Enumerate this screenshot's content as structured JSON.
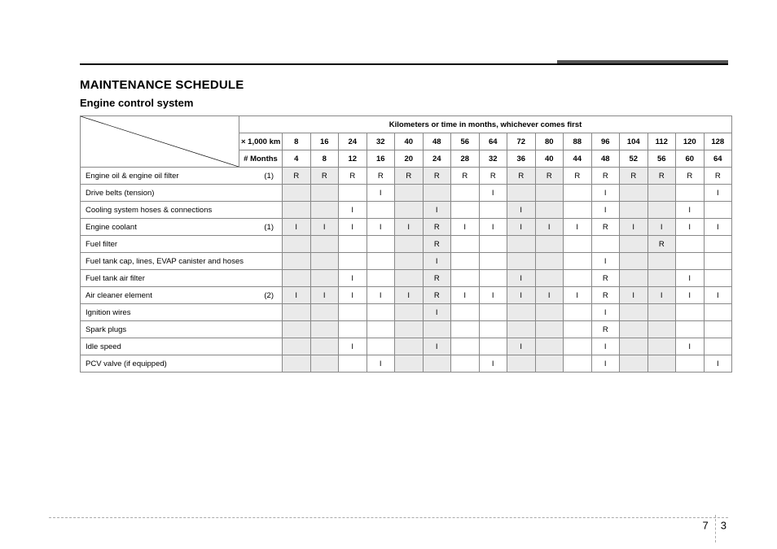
{
  "header": {
    "title": "MAINTENANCE SCHEDULE",
    "subtitle": "Engine control system",
    "band_title": "Kilometers or time in months, whichever comes first",
    "unit_km": "× 1,000 km",
    "unit_months": "# Months"
  },
  "columns_km": [
    "8",
    "16",
    "24",
    "32",
    "40",
    "48",
    "56",
    "64",
    "72",
    "80",
    "88",
    "96",
    "104",
    "112",
    "120",
    "128"
  ],
  "columns_months": [
    "4",
    "8",
    "12",
    "16",
    "20",
    "24",
    "28",
    "32",
    "36",
    "40",
    "44",
    "48",
    "52",
    "56",
    "60",
    "64"
  ],
  "shaded_cols": [
    0,
    1,
    4,
    5,
    8,
    9,
    12,
    13
  ],
  "rows": [
    {
      "label": "Engine oil & engine oil filter",
      "note": "(1)",
      "cells": [
        "R",
        "R",
        "R",
        "R",
        "R",
        "R",
        "R",
        "R",
        "R",
        "R",
        "R",
        "R",
        "R",
        "R",
        "R",
        "R"
      ]
    },
    {
      "label": "Drive belts (tension)",
      "note": "",
      "cells": [
        "",
        "",
        "",
        "I",
        "",
        "",
        "",
        "I",
        "",
        "",
        "",
        "I",
        "",
        "",
        "",
        "I"
      ]
    },
    {
      "label": "Cooling system hoses & connections",
      "note": "",
      "cells": [
        "",
        "",
        "I",
        "",
        "",
        "I",
        "",
        "",
        "I",
        "",
        "",
        "I",
        "",
        "",
        "I",
        ""
      ]
    },
    {
      "label": "Engine coolant",
      "note": "(1)",
      "cells": [
        "I",
        "I",
        "I",
        "I",
        "I",
        "R",
        "I",
        "I",
        "I",
        "I",
        "I",
        "R",
        "I",
        "I",
        "I",
        "I"
      ]
    },
    {
      "label": "Fuel filter",
      "note": "",
      "cells": [
        "",
        "",
        "",
        "",
        "",
        "R",
        "",
        "",
        "",
        "",
        "",
        "",
        "",
        "R",
        "",
        ""
      ]
    },
    {
      "label": "Fuel tank cap, lines, EVAP canister and hoses",
      "note": "",
      "cells": [
        "",
        "",
        "",
        "",
        "",
        "I",
        "",
        "",
        "",
        "",
        "",
        "I",
        "",
        "",
        "",
        ""
      ]
    },
    {
      "label": "Fuel tank air filter",
      "note": "",
      "cells": [
        "",
        "",
        "I",
        "",
        "",
        "R",
        "",
        "",
        "I",
        "",
        "",
        "R",
        "",
        "",
        "I",
        ""
      ]
    },
    {
      "label": "Air cleaner element",
      "note": "(2)",
      "cells": [
        "I",
        "I",
        "I",
        "I",
        "I",
        "R",
        "I",
        "I",
        "I",
        "I",
        "I",
        "R",
        "I",
        "I",
        "I",
        "I"
      ]
    },
    {
      "label": "Ignition wires",
      "note": "",
      "cells": [
        "",
        "",
        "",
        "",
        "",
        "I",
        "",
        "",
        "",
        "",
        "",
        "I",
        "",
        "",
        "",
        ""
      ]
    },
    {
      "label": "Spark plugs",
      "note": "",
      "cells": [
        "",
        "",
        "",
        "",
        "",
        "",
        "",
        "",
        "",
        "",
        "",
        "R",
        "",
        "",
        "",
        ""
      ]
    },
    {
      "label": "Idle speed",
      "note": "",
      "cells": [
        "",
        "",
        "I",
        "",
        "",
        "I",
        "",
        "",
        "I",
        "",
        "",
        "I",
        "",
        "",
        "I",
        ""
      ]
    },
    {
      "label": "PCV valve (if equipped)",
      "note": "",
      "cells": [
        "",
        "",
        "",
        "I",
        "",
        "",
        "",
        "I",
        "",
        "",
        "",
        "I",
        "",
        "",
        "",
        "I"
      ]
    }
  ],
  "page_number": {
    "chapter": "7",
    "page": "3"
  }
}
